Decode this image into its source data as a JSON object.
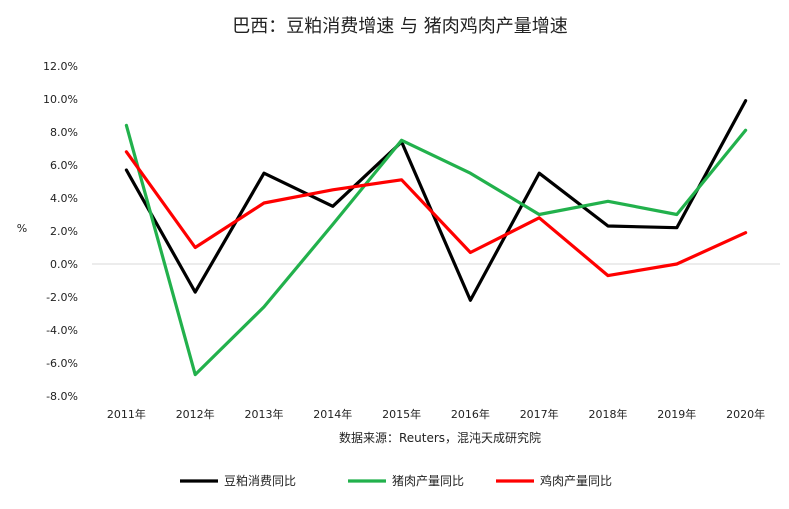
{
  "chart_data": {
    "type": "line",
    "title": "巴西：豆粕消费增速 与 猪肉鸡肉产量增速",
    "source": "数据来源：Reuters，混沌天成研究院",
    "ylabel": "%",
    "categories": [
      "2011年",
      "2012年",
      "2013年",
      "2014年",
      "2015年",
      "2016年",
      "2017年",
      "2018年",
      "2019年",
      "2020年"
    ],
    "y_ticks": [
      "12.0%",
      "10.0%",
      "8.0%",
      "6.0%",
      "4.0%",
      "2.0%",
      "0.0%",
      "-2.0%",
      "-4.0%",
      "-6.0%",
      "-8.0%"
    ],
    "ylim": [
      -8,
      12
    ],
    "legend_position": "bottom",
    "series": [
      {
        "name": "豆粕消费同比",
        "color": "#000000",
        "values": [
          5.7,
          -1.7,
          5.5,
          3.5,
          7.4,
          -2.2,
          5.5,
          2.3,
          2.2,
          9.9
        ]
      },
      {
        "name": "猪肉产量同比",
        "color": "#22b14c",
        "values": [
          8.4,
          -6.7,
          -2.6,
          2.4,
          7.5,
          5.5,
          3.0,
          3.8,
          3.0,
          8.1
        ]
      },
      {
        "name": "鸡肉产量同比",
        "color": "#ff0000",
        "values": [
          6.8,
          1.0,
          3.7,
          4.5,
          5.1,
          0.7,
          2.8,
          -0.7,
          0.0,
          1.9
        ]
      }
    ]
  }
}
